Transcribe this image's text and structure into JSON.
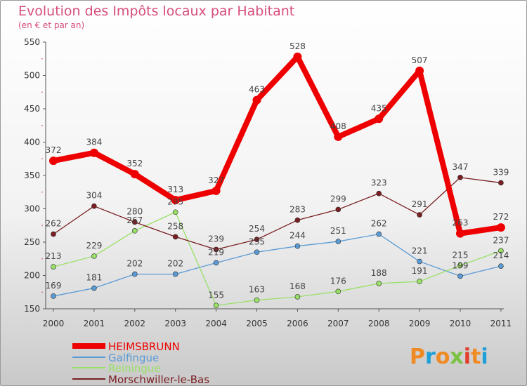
{
  "chart_data": {
    "type": "line",
    "title": "Evolution des Impôts locaux par Habitant",
    "subtitle": "(en € et par an)",
    "x": [
      "2000",
      "2001",
      "2002",
      "2003",
      "2004",
      "2005",
      "2006",
      "2007",
      "2008",
      "2009",
      "2010",
      "2011"
    ],
    "ylim": [
      150,
      550
    ],
    "yticks": [
      150,
      200,
      250,
      300,
      350,
      400,
      450,
      500,
      550
    ],
    "grid": false,
    "legend_position": "bottom-left",
    "series": [
      {
        "name": "HEIMSBRUNN",
        "color": "#ee0000",
        "values": [
          372,
          384,
          352,
          313,
          327,
          463,
          528,
          408,
          435,
          507,
          263,
          272
        ]
      },
      {
        "name": "Galfingue",
        "color": "#5b9bd5",
        "values": [
          169,
          181,
          202,
          202,
          219,
          235,
          244,
          251,
          262,
          221,
          199,
          214
        ]
      },
      {
        "name": "Reiningue",
        "color": "#99e066",
        "values": [
          213,
          229,
          267,
          295,
          155,
          163,
          168,
          176,
          188,
          191,
          215,
          237
        ]
      },
      {
        "name": "Morschwiller-le-Bas",
        "color": "#7a1e22",
        "values": [
          262,
          304,
          280,
          258,
          239,
          254,
          283,
          299,
          323,
          291,
          347,
          339
        ]
      }
    ]
  },
  "logo": {
    "letters": [
      "P",
      "r",
      "o",
      "x",
      "i",
      "t",
      "i"
    ],
    "colors": [
      "#f08a24",
      "#1e9fd8",
      "#f08a24",
      "#7cc242",
      "#e23c2a",
      "#f08a24",
      "#1e9fd8"
    ]
  }
}
